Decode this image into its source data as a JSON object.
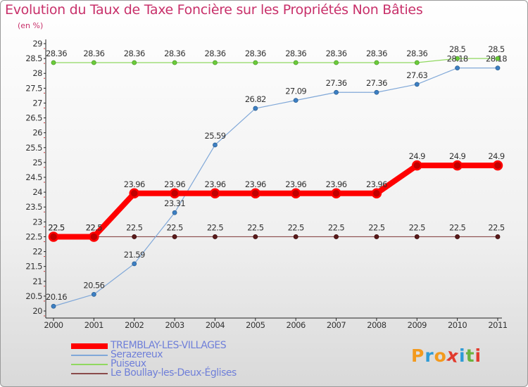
{
  "title": "Evolution du Taux de Taxe Foncière sur les Propriétés Non Bâties",
  "subtitle": "(en %)",
  "logo": {
    "text": "Proxiti",
    "letter_colors": [
      "#f39a1e",
      "#2e9bd6",
      "#f39a1e",
      "#e23b2e",
      "#2e9bd6",
      "#6ab23e",
      "#e23b2e"
    ]
  },
  "chart_data": {
    "type": "line",
    "title": "Evolution du Taux de Taxe Foncière sur les Propriétés Non Bâties",
    "ylabel": "(en %)",
    "xlabel": "",
    "x": [
      "2000",
      "2001",
      "2002",
      "2003",
      "2004",
      "2005",
      "2006",
      "2007",
      "2008",
      "2009",
      "2010",
      "2011"
    ],
    "ylim": [
      20,
      29
    ],
    "ytick_step": 0.5,
    "grid": false,
    "legend_position": "bottom-left",
    "series": [
      {
        "name": "TREMBLAY-LES-VILLAGES",
        "color": "#ff0000",
        "marker_color": "#c00000",
        "values": [
          22.5,
          22.5,
          23.96,
          23.96,
          23.96,
          23.96,
          23.96,
          23.96,
          23.96,
          24.9,
          24.9,
          24.9
        ],
        "labels": [
          "22.5",
          "22.5",
          "23.96",
          "23.96",
          "23.96",
          "23.96",
          "23.96",
          "23.96",
          "23.96",
          "24.9",
          "24.9",
          "24.9"
        ]
      },
      {
        "name": "Serazereux",
        "color": "#80a8d8",
        "marker_color": "#3c7fc4",
        "values": [
          20.16,
          20.56,
          21.59,
          23.31,
          25.59,
          26.82,
          27.09,
          27.36,
          27.36,
          27.63,
          28.18,
          28.18
        ],
        "labels": [
          "20.16",
          "20.56",
          "21.59",
          "23.31",
          "25.59",
          "26.82",
          "27.09",
          "27.36",
          "27.36",
          "27.63",
          "28.18",
          "28.18"
        ]
      },
      {
        "name": "Puiseux",
        "color": "#90d860",
        "marker_color": "#6ccc3a",
        "values": [
          28.36,
          28.36,
          28.36,
          28.36,
          28.36,
          28.36,
          28.36,
          28.36,
          28.36,
          28.36,
          28.5,
          28.5
        ],
        "labels": [
          "28.36",
          "28.36",
          "28.36",
          "28.36",
          "28.36",
          "28.36",
          "28.36",
          "28.36",
          "28.36",
          "28.36",
          "28.5",
          "28.5"
        ]
      },
      {
        "name": "Le Boullay-les-Deux-Églises",
        "color": "#8a4a4a",
        "marker_color": "#5a1a1a",
        "values": [
          22.5,
          22.5,
          22.5,
          22.5,
          22.5,
          22.5,
          22.5,
          22.5,
          22.5,
          22.5,
          22.5,
          22.5
        ],
        "labels": [
          "22.5",
          "22.5",
          "22.5",
          "22.5",
          "22.5",
          "22.5",
          "22.5",
          "22.5",
          "22.5",
          "22.5",
          "22.5",
          "22.5"
        ]
      }
    ]
  }
}
